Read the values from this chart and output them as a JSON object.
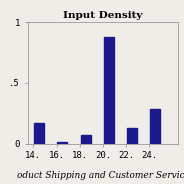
{
  "title": "Input Density",
  "bar_centers": [
    14.5,
    16.5,
    18.5,
    20.5,
    22.5,
    24.5
  ],
  "bar_heights": [
    0.055,
    0.003,
    0.022,
    0.28,
    0.042,
    0.09
  ],
  "bar_width": 0.85,
  "bar_color": "#1a1a8c",
  "xlim": [
    13.5,
    26.5
  ],
  "ylim": [
    0,
    0.32
  ],
  "xticks": [
    14,
    16,
    18,
    20,
    22,
    24
  ],
  "ytick_labels": [
    "0",
    ".5",
    "1"
  ],
  "ytick_values": [
    0,
    0.16,
    0.32
  ],
  "background_color": "#f0ede8",
  "footer_text": "oduct Shipping and Customer Service",
  "title_fontsize": 7.5,
  "tick_fontsize": 6.5,
  "footer_fontsize": 6.5
}
